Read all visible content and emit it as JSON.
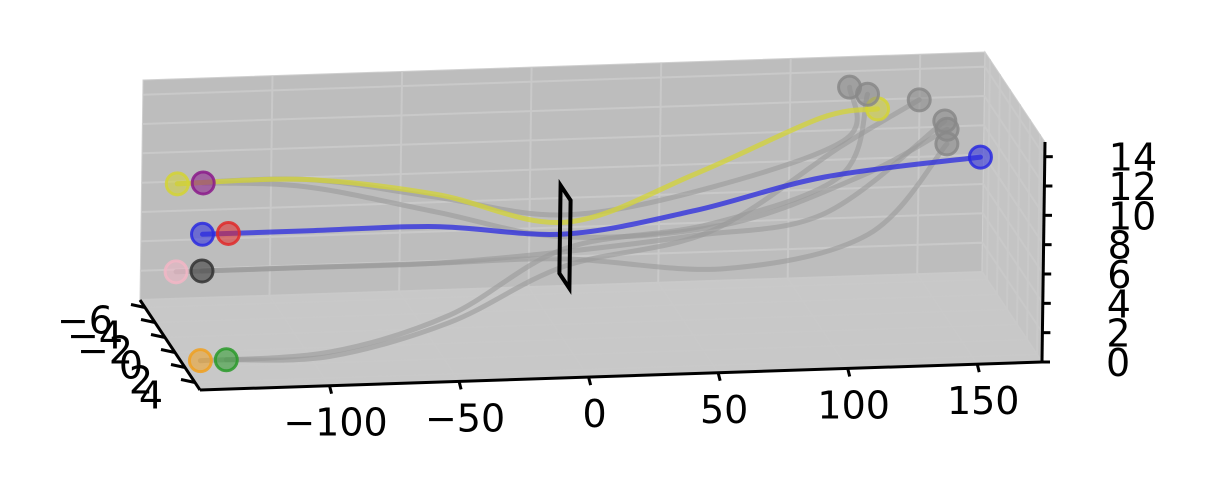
{
  "chart_data": {
    "type": "line3d",
    "title": "",
    "xlabel": "",
    "ylabel": "",
    "zlabel": "",
    "x_ticks": [
      "−100",
      "−50",
      "0",
      "50",
      "100",
      "150"
    ],
    "y_ticks": [
      "−6",
      "−4",
      "−2",
      "0",
      "2",
      "4"
    ],
    "z_ticks": [
      "0",
      "2",
      "4",
      "6",
      "8",
      "10",
      "12",
      "14"
    ],
    "xlim": [
      -150,
      175
    ],
    "ylim": [
      -7,
      5
    ],
    "zlim": [
      0,
      15
    ],
    "pane_color": "#bdbdbd",
    "grid": true,
    "gate": {
      "color": "#000000",
      "corners": [
        [
          0,
          -1,
          4
        ],
        [
          0,
          1,
          4
        ],
        [
          0,
          1,
          10
        ],
        [
          0,
          -1,
          10
        ]
      ]
    },
    "series": [
      {
        "color": "#d4d435",
        "highlight": true,
        "points": [
          [
            -150,
            0,
            11.5
          ],
          [
            -100,
            0,
            11.5
          ],
          [
            -50,
            0,
            10.2
          ],
          [
            0,
            0,
            8.0
          ],
          [
            50,
            0,
            11.0
          ],
          [
            100,
            -1,
            14.0
          ],
          [
            122,
            -1,
            14.5
          ]
        ]
      },
      {
        "color": "#2a2ae0",
        "highlight": true,
        "points": [
          [
            -140,
            0,
            8.0
          ],
          [
            -100,
            0,
            8.0
          ],
          [
            -50,
            0,
            8.0
          ],
          [
            0,
            0,
            7.2
          ],
          [
            50,
            0,
            8.5
          ],
          [
            100,
            0,
            10.5
          ],
          [
            160,
            0,
            11.5
          ]
        ]
      },
      {
        "color": "#999999",
        "highlight": false,
        "points": [
          [
            -150,
            0,
            5.5
          ],
          [
            -100,
            0,
            5.5
          ],
          [
            -50,
            0,
            5.5
          ],
          [
            0,
            0,
            6.0
          ],
          [
            50,
            0,
            6.8
          ],
          [
            100,
            0,
            8.0
          ],
          [
            150,
            -2,
            13.0
          ]
        ]
      },
      {
        "color": "#999999",
        "highlight": false,
        "points": [
          [
            -140,
            0,
            5.5
          ],
          [
            -100,
            0,
            5.5
          ],
          [
            -50,
            0,
            5.5
          ],
          [
            0,
            0,
            5.5
          ],
          [
            60,
            1,
            5.0
          ],
          [
            115,
            1,
            7.0
          ],
          [
            145,
            1,
            13.0
          ]
        ]
      },
      {
        "color": "#999999",
        "highlight": false,
        "points": [
          [
            -150,
            5,
            2.0
          ],
          [
            -100,
            5,
            2.3
          ],
          [
            -50,
            3,
            3.5
          ],
          [
            0,
            0,
            6.2
          ],
          [
            60,
            -2,
            6.5
          ],
          [
            110,
            -2,
            9.5
          ],
          [
            120,
            -2,
            15.0
          ]
        ]
      },
      {
        "color": "#999999",
        "highlight": false,
        "points": [
          [
            -140,
            5,
            2.0
          ],
          [
            -100,
            5,
            2.0
          ],
          [
            -50,
            3,
            3.0
          ],
          [
            0,
            0,
            5.0
          ],
          [
            60,
            -2,
            6.0
          ],
          [
            110,
            -2,
            11.5
          ],
          [
            140,
            -2,
            14.5
          ]
        ]
      },
      {
        "color": "#999999",
        "highlight": false,
        "points": [
          [
            -150,
            0,
            11.5
          ],
          [
            -100,
            0,
            11.5
          ],
          [
            -50,
            0,
            10.0
          ],
          [
            0,
            0,
            8.5
          ],
          [
            60,
            -2,
            9.0
          ],
          [
            112,
            -2,
            12.0
          ],
          [
            115,
            -3,
            15.0
          ]
        ]
      },
      {
        "color": "#999999",
        "highlight": false,
        "points": [
          [
            -140,
            0,
            11.5
          ],
          [
            -100,
            0,
            11.0
          ],
          [
            -50,
            0,
            9.0
          ],
          [
            0,
            0,
            7.0
          ],
          [
            60,
            1,
            8.0
          ],
          [
            112,
            1,
            11.0
          ],
          [
            145,
            1,
            14.0
          ]
        ]
      }
    ],
    "start_markers": [
      {
        "color": "#d4d435",
        "point": [
          -150,
          0,
          11.5
        ]
      },
      {
        "color": "#8b1a8b",
        "point": [
          -140,
          0,
          11.5
        ]
      },
      {
        "color": "#2a2ae0",
        "point": [
          -140,
          0,
          8.0
        ]
      },
      {
        "color": "#e02a2a",
        "point": [
          -130,
          0,
          8.0
        ]
      },
      {
        "color": "#f2b6c6",
        "point": [
          -150,
          0,
          5.5
        ]
      },
      {
        "color": "#333333",
        "point": [
          -140,
          0,
          5.5
        ]
      },
      {
        "color": "#f0a020",
        "point": [
          -150,
          5,
          2.0
        ]
      },
      {
        "color": "#2a9a2a",
        "point": [
          -140,
          5,
          2.0
        ]
      }
    ],
    "end_markers": [
      {
        "color": "#d4d435",
        "point": [
          122,
          -1,
          14.5
        ]
      },
      {
        "color": "#2a2ae0",
        "point": [
          160,
          0,
          11.5
        ]
      },
      {
        "color": "#888888",
        "point": [
          120,
          -2,
          15.0
        ]
      },
      {
        "color": "#888888",
        "point": [
          115,
          -3,
          15.0
        ]
      },
      {
        "color": "#888888",
        "point": [
          140,
          -2,
          14.5
        ]
      },
      {
        "color": "#888888",
        "point": [
          145,
          1,
          14.0
        ]
      },
      {
        "color": "#888888",
        "point": [
          150,
          -2,
          13.0
        ]
      },
      {
        "color": "#888888",
        "point": [
          145,
          1,
          13.0
        ]
      }
    ]
  }
}
